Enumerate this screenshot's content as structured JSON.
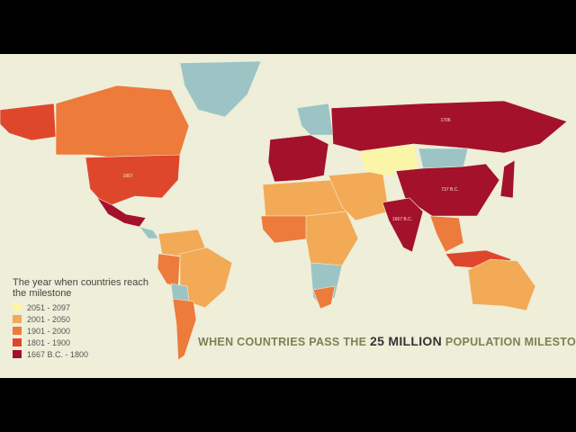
{
  "legend": {
    "title": "The year when countries reach the milestone",
    "items": [
      {
        "label": "2051 - 2097",
        "color": "#fbf5a8"
      },
      {
        "label": "2001 - 2050",
        "color": "#f3aa56"
      },
      {
        "label": "1901 - 2000",
        "color": "#ed7b3b"
      },
      {
        "label": "1801 - 1900",
        "color": "#df472d"
      },
      {
        "label": "1667 B.C. - 1800",
        "color": "#a3112b"
      }
    ]
  },
  "title": {
    "before": "WHEN COUNTRIES PASS THE",
    "highlight": "25 MILLION",
    "after": "POPULATION MILESTONE"
  },
  "map_labels": [
    "1706",
    "737 B.C.",
    "1667 B.C.",
    "1867"
  ]
}
